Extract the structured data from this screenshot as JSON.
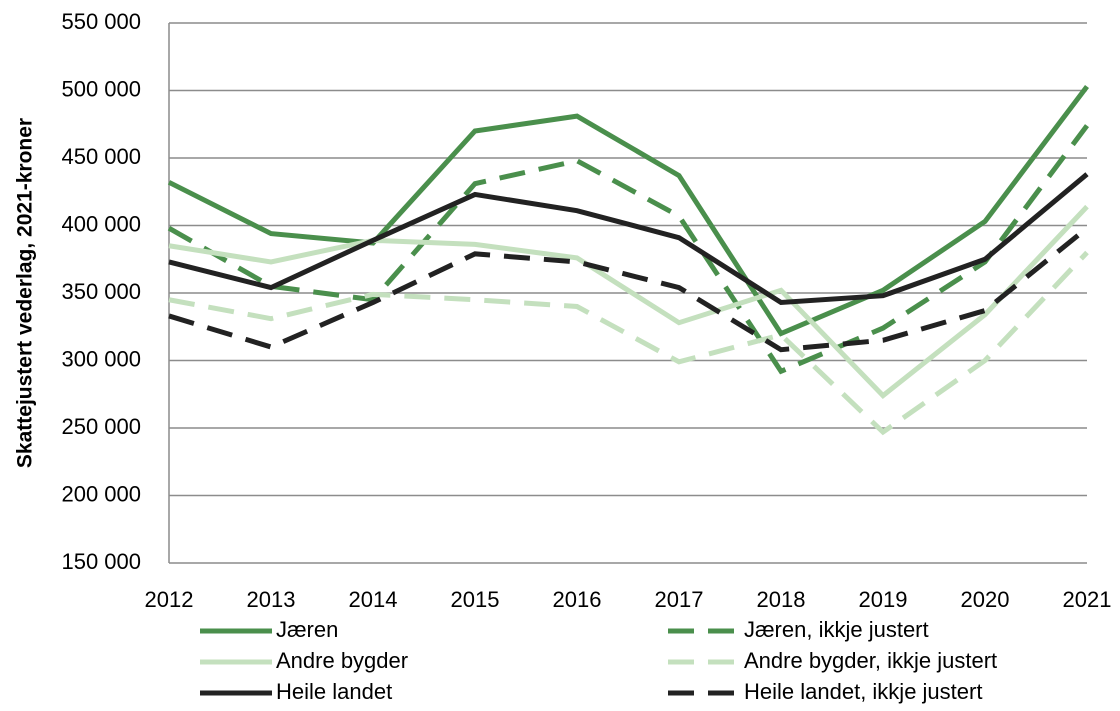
{
  "chart_data": {
    "type": "line",
    "y_axis_label": "Skattejustert vederlag, 2021-kroner",
    "categories": [
      "2012",
      "2013",
      "2014",
      "2015",
      "2016",
      "2017",
      "2018",
      "2019",
      "2020",
      "2021"
    ],
    "ylim": [
      150000,
      550000
    ],
    "yticks": [
      {
        "value": 150000,
        "label": "150 000"
      },
      {
        "value": 200000,
        "label": "200 000"
      },
      {
        "value": 250000,
        "label": "250 000"
      },
      {
        "value": 300000,
        "label": "300 000"
      },
      {
        "value": 350000,
        "label": "350 000"
      },
      {
        "value": 400000,
        "label": "400 000"
      },
      {
        "value": 450000,
        "label": "450 000"
      },
      {
        "value": 500000,
        "label": "500 000"
      },
      {
        "value": 550000,
        "label": "550 000"
      }
    ],
    "grid": true,
    "series": [
      {
        "name": "Jæren",
        "color": "#4a8f4c",
        "style": "solid",
        "values": [
          432000,
          394000,
          387000,
          470000,
          481000,
          437000,
          320000,
          352000,
          403000,
          503000
        ]
      },
      {
        "name": "Jæren, ikkje justert",
        "color": "#4a8f4c",
        "style": "dashed",
        "values": [
          398000,
          355000,
          345000,
          431000,
          448000,
          407000,
          292000,
          324000,
          373000,
          474000
        ]
      },
      {
        "name": "Andre bygder",
        "color": "#c4e0be",
        "style": "solid",
        "values": [
          385000,
          373000,
          389000,
          386000,
          376000,
          328000,
          352000,
          274000,
          334000,
          414000
        ]
      },
      {
        "name": "Andre bygder, ikkje justert",
        "color": "#c4e0be",
        "style": "dashed",
        "values": [
          345000,
          331000,
          349000,
          345000,
          340000,
          299000,
          319000,
          247000,
          300000,
          380000
        ]
      },
      {
        "name": "Heile landet",
        "color": "#222222",
        "style": "solid",
        "values": [
          373000,
          354000,
          389000,
          423000,
          411000,
          391000,
          343000,
          348000,
          375000,
          438000
        ]
      },
      {
        "name": "Heile landet, ikkje justert",
        "color": "#222222",
        "style": "dashed",
        "values": [
          333000,
          310000,
          343000,
          379000,
          373000,
          354000,
          308000,
          315000,
          337000,
          398000
        ]
      }
    ]
  }
}
